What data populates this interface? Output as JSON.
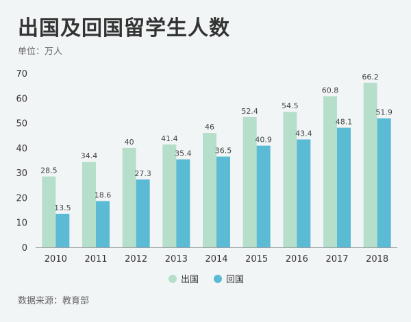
{
  "title": "出国及回国留学生人数",
  "unit_label": "单位：万人",
  "source_label": "数据来源：教育部",
  "chart_data": {
    "type": "bar",
    "categories": [
      "2010",
      "2011",
      "2012",
      "2013",
      "2014",
      "2015",
      "2016",
      "2017",
      "2018"
    ],
    "series": [
      {
        "name": "出国",
        "color": "#b6dfcb",
        "values": [
          28.5,
          34.4,
          40,
          41.4,
          46,
          52.4,
          54.5,
          60.8,
          66.2
        ]
      },
      {
        "name": "回国",
        "color": "#5bbad4",
        "values": [
          13.5,
          18.6,
          27.3,
          35.4,
          36.5,
          40.9,
          43.4,
          48.1,
          51.9
        ]
      }
    ],
    "yticks": [
      0,
      10,
      20,
      30,
      40,
      50,
      60,
      70
    ],
    "ylim": [
      0,
      70
    ],
    "legend": "bottom-center",
    "grid": false
  }
}
